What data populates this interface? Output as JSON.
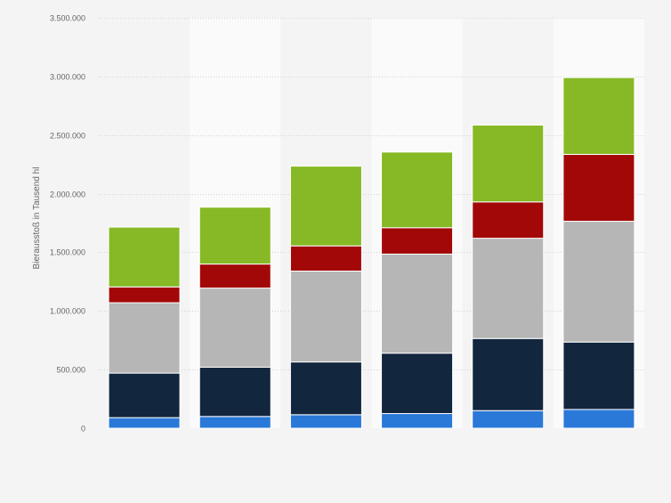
{
  "chart_data": {
    "type": "bar",
    "stacked": true,
    "title": "",
    "xlabel": "",
    "ylabel": "Bierausstoß in Tausend hl",
    "ylim": [
      0,
      3500000
    ],
    "yticks": [
      0,
      500000,
      1000000,
      1500000,
      2000000,
      2500000,
      3000000,
      3500000
    ],
    "ytick_labels": [
      "0",
      "500.000",
      "1.000.000",
      "1.500.000",
      "2.000.000",
      "2.500.000",
      "3.000.000",
      "3.500.000"
    ],
    "grid": true,
    "categories": [
      "",
      "",
      "",
      "",
      "",
      ""
    ],
    "series": [
      {
        "name": "",
        "color": "#2a78d8",
        "values": [
          90000,
          100000,
          115000,
          125000,
          150000,
          160000
        ]
      },
      {
        "name": "",
        "color": "#12263e",
        "values": [
          380000,
          420000,
          450000,
          515000,
          615000,
          575000
        ]
      },
      {
        "name": "",
        "color": "#b6b6b6",
        "values": [
          600000,
          675000,
          775000,
          845000,
          855000,
          1030000
        ]
      },
      {
        "name": "",
        "color": "#a30808",
        "values": [
          135000,
          205000,
          215000,
          225000,
          310000,
          570000
        ]
      },
      {
        "name": "",
        "color": "#86b925",
        "values": [
          510000,
          485000,
          680000,
          645000,
          655000,
          655000
        ]
      }
    ]
  }
}
